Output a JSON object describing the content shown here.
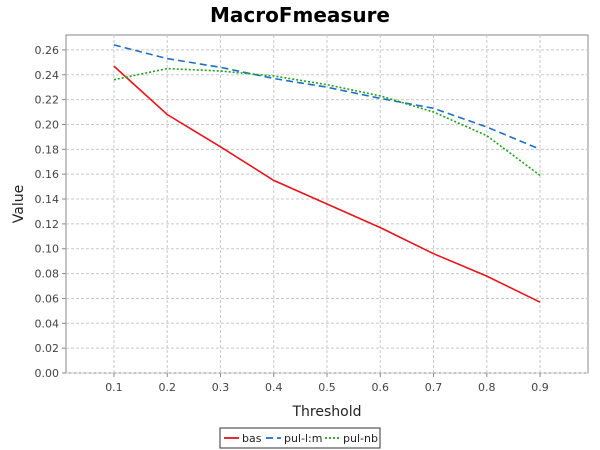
{
  "chart_data": {
    "type": "line",
    "title": "MacroFmeasure",
    "xlabel": "Threshold",
    "ylabel": "Value",
    "x": [
      0.1,
      0.2,
      0.3,
      0.4,
      0.5,
      0.6,
      0.7,
      0.8,
      0.9
    ],
    "x_tick_labels": [
      "0.1",
      "0.2",
      "0.3",
      "0.4",
      "0.5",
      "0.6",
      "0.7",
      "0.8",
      "0.9"
    ],
    "xlim": [
      0.01,
      0.99
    ],
    "ylim": [
      0.0,
      0.272
    ],
    "y_ticks": [
      0.0,
      0.02,
      0.04,
      0.06,
      0.08,
      0.1,
      0.12,
      0.14,
      0.16,
      0.18,
      0.2,
      0.22,
      0.24,
      0.26
    ],
    "y_tick_labels": [
      "0.00",
      "0.02",
      "0.04",
      "0.06",
      "0.08",
      "0.10",
      "0.12",
      "0.14",
      "0.16",
      "0.18",
      "0.20",
      "0.22",
      "0.24",
      "0.26"
    ],
    "grid": true,
    "legend_position": "bottom",
    "series": [
      {
        "name": "bas",
        "color": "#e8141b",
        "dash": "solid",
        "values": [
          0.247,
          0.208,
          0.182,
          0.155,
          0.136,
          0.117,
          0.096,
          0.078,
          0.057
        ]
      },
      {
        "name": "pul-l:m",
        "color": "#1f6fc5",
        "dash": "dashed",
        "values": [
          0.264,
          0.253,
          0.246,
          0.237,
          0.23,
          0.221,
          0.213,
          0.198,
          0.18
        ]
      },
      {
        "name": "pul-nb",
        "color": "#1aa31a",
        "dash": "dotted",
        "values": [
          0.236,
          0.245,
          0.243,
          0.239,
          0.232,
          0.223,
          0.21,
          0.191,
          0.159
        ]
      }
    ]
  }
}
